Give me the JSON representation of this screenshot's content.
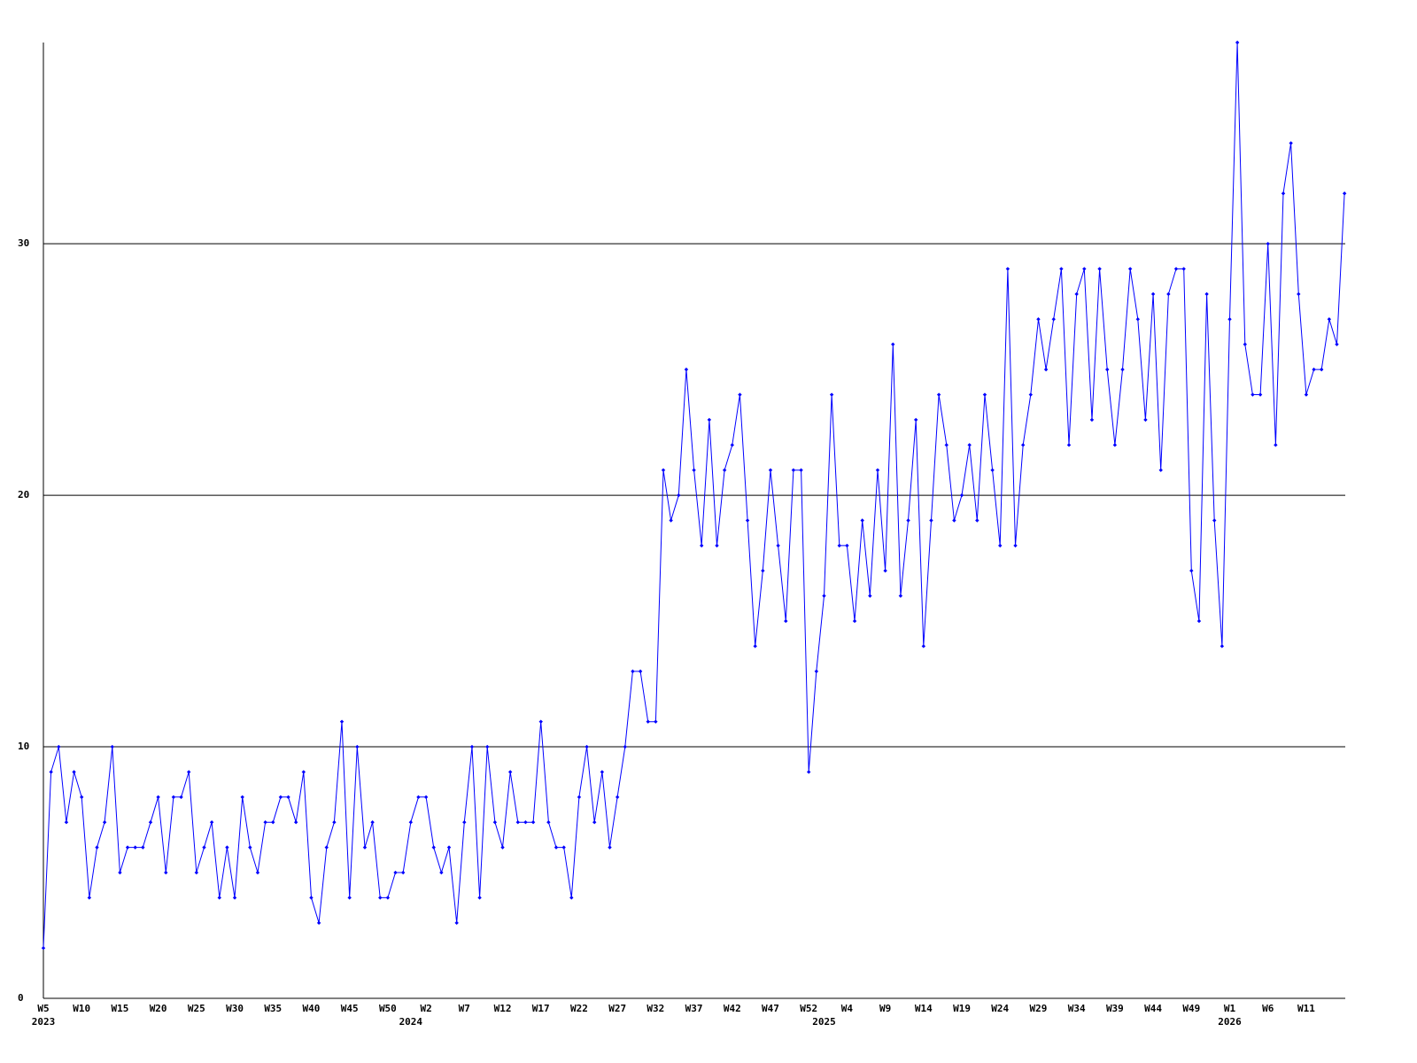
{
  "chart_data": {
    "type": "line",
    "values": [
      2,
      9,
      10,
      7,
      9,
      8,
      4,
      6,
      7,
      10,
      5,
      6,
      6,
      6,
      7,
      8,
      5,
      8,
      8,
      9,
      5,
      6,
      7,
      4,
      6,
      4,
      8,
      6,
      5,
      7,
      7,
      8,
      8,
      7,
      9,
      4,
      3,
      6,
      7,
      11,
      4,
      10,
      6,
      7,
      4,
      4,
      5,
      5,
      7,
      8,
      8,
      6,
      5,
      6,
      3,
      7,
      10,
      4,
      10,
      7,
      6,
      9,
      7,
      7,
      7,
      11,
      7,
      6,
      6,
      4,
      8,
      10,
      7,
      9,
      6,
      8,
      10,
      13,
      13,
      11,
      11,
      21,
      19,
      20,
      25,
      21,
      18,
      23,
      18,
      21,
      22,
      24,
      19,
      14,
      17,
      21,
      18,
      15,
      21,
      21,
      9,
      13,
      16,
      24,
      18,
      18,
      15,
      19,
      16,
      21,
      17,
      26,
      16,
      19,
      23,
      14,
      19,
      24,
      22,
      19,
      20,
      22,
      19,
      24,
      21,
      18,
      29,
      18,
      22,
      24,
      27,
      25,
      27,
      29,
      22,
      28,
      29,
      23,
      29,
      25,
      22,
      25,
      29,
      27,
      23,
      28,
      21,
      28,
      29,
      29,
      17,
      15,
      28,
      19,
      14,
      27,
      38,
      26,
      24,
      24,
      30,
      22,
      32,
      34,
      28,
      24,
      25,
      25,
      27,
      26,
      32
    ],
    "categories": [
      "W5",
      null,
      null,
      null,
      null,
      "W10",
      null,
      null,
      null,
      null,
      "W15",
      null,
      null,
      null,
      null,
      "W20",
      null,
      null,
      null,
      null,
      "W25",
      null,
      null,
      null,
      null,
      "W30",
      null,
      null,
      null,
      null,
      "W35",
      null,
      null,
      null,
      null,
      "W40",
      null,
      null,
      null,
      null,
      "W45",
      null,
      null,
      null,
      null,
      "W50",
      null,
      null,
      null,
      null,
      "W2",
      null,
      null,
      null,
      null,
      "W7",
      null,
      null,
      null,
      null,
      "W12",
      null,
      null,
      null,
      null,
      "W17",
      null,
      null,
      null,
      null,
      "W22",
      null,
      null,
      null,
      null,
      "W27",
      null,
      null,
      null,
      null,
      "W32",
      null,
      null,
      null,
      null,
      "W37",
      null,
      null,
      null,
      null,
      "W42",
      null,
      null,
      null,
      null,
      "W47",
      null,
      null,
      null,
      null,
      "W52",
      null,
      null,
      null,
      null,
      "W4",
      null,
      null,
      null,
      null,
      "W9",
      null,
      null,
      null,
      null,
      "W14",
      null,
      null,
      null,
      null,
      "W19",
      null,
      null,
      null,
      null,
      "W24",
      null,
      null,
      null,
      null,
      "W29",
      null,
      null,
      null,
      null,
      "W34",
      null,
      null,
      null,
      null,
      "W39",
      null,
      null,
      null,
      null,
      "W44",
      null,
      null,
      null,
      null,
      "W49",
      null,
      null,
      null,
      null,
      "W1",
      null,
      null,
      null,
      null,
      "W6",
      null,
      null,
      null,
      null,
      "W11",
      null,
      null,
      null,
      null,
      null
    ],
    "category_years": {
      "0": "2023",
      "48": "2024",
      "102": "2025",
      "155": "2026"
    },
    "color": "#0000ff",
    "ylim": [
      0,
      38
    ],
    "yticks": [
      0,
      10,
      20,
      30
    ],
    "grid": true
  }
}
